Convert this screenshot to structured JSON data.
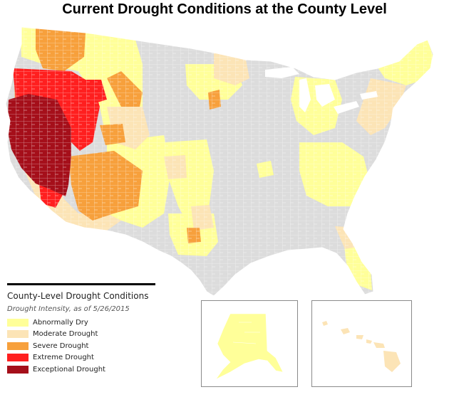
{
  "title": "Current Drought Conditions at the County Level",
  "legend": {
    "title": "County-Level Drought Conditions",
    "subtitle": "Drought Intensity, as of 5/26/2015",
    "items": [
      {
        "label": "Abnormally Dry",
        "color": "#ffff99"
      },
      {
        "label": "Moderate Drought",
        "color": "#fce4b6"
      },
      {
        "label": "Severe Drought",
        "color": "#f7a03c"
      },
      {
        "label": "Extreme Drought",
        "color": "#ff1f1f"
      },
      {
        "label": "Exceptional Drought",
        "color": "#a50f1a"
      }
    ]
  },
  "colors": {
    "no_drought": "#dcdcdc",
    "county_border": "#ffffff",
    "inset_border": "#8a8a8a"
  },
  "insets": [
    "alaska",
    "hawaii"
  ]
}
